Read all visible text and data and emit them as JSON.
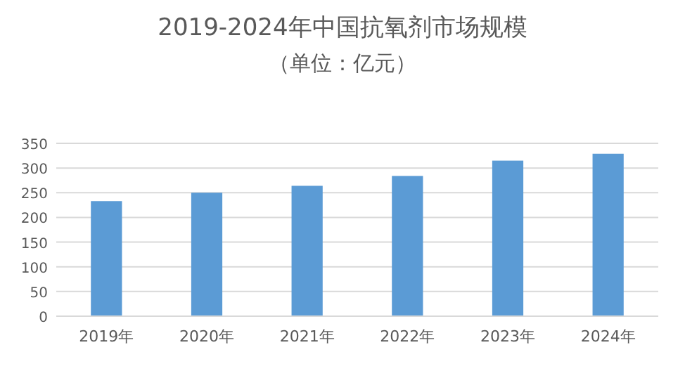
{
  "chart_data": {
    "type": "bar",
    "title": "2019-2024年中国抗氧剂市场规模",
    "subtitle": "（单位：亿元）",
    "categories": [
      "2019年",
      "2020年",
      "2021年",
      "2022年",
      "2023年",
      "2024年"
    ],
    "values": [
      233,
      250,
      264,
      284,
      315,
      329
    ],
    "color": "#5b9bd5",
    "ylim": [
      0,
      350
    ],
    "yticks": [
      0,
      50,
      100,
      150,
      200,
      250,
      300,
      350
    ],
    "grid": "y"
  }
}
